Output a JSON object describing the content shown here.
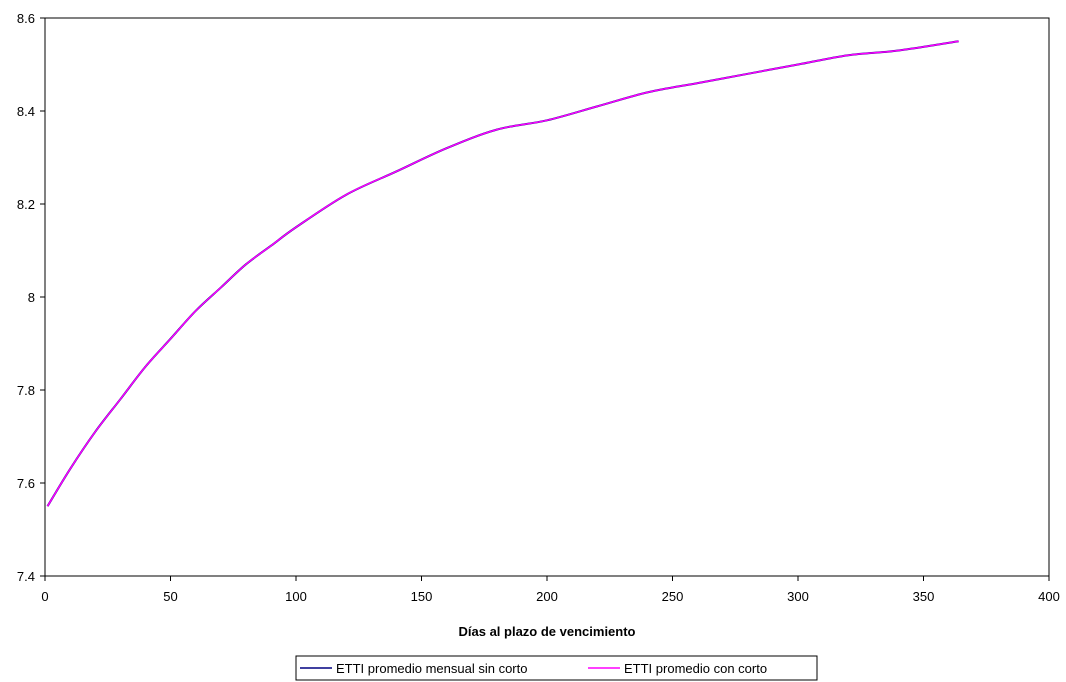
{
  "chart_data": {
    "type": "line",
    "title": "",
    "xlabel": "Días al plazo de vencimiento",
    "ylabel": "",
    "xlim": [
      0,
      400
    ],
    "ylim": [
      7.4,
      8.6
    ],
    "xticks": [
      "0",
      "50",
      "100",
      "150",
      "200",
      "250",
      "300",
      "350",
      "400"
    ],
    "yticks": [
      "7.4",
      "7.6",
      "7.8",
      "8",
      "8.2",
      "8.4",
      "8.6"
    ],
    "grid": false,
    "legend_position": "bottom-center",
    "x": [
      1,
      10,
      20,
      30,
      40,
      50,
      60,
      70,
      80,
      90,
      100,
      120,
      140,
      160,
      180,
      200,
      220,
      240,
      260,
      280,
      300,
      320,
      340,
      364
    ],
    "series": [
      {
        "name": "ETTI promedio mensual sin corto",
        "color": "#000080",
        "values": [
          7.55,
          7.63,
          7.71,
          7.78,
          7.85,
          7.91,
          7.97,
          8.02,
          8.07,
          8.11,
          8.15,
          8.22,
          8.27,
          8.32,
          8.36,
          8.38,
          8.41,
          8.44,
          8.46,
          8.48,
          8.5,
          8.52,
          8.53,
          8.55
        ]
      },
      {
        "name": "ETTI promedio con corto",
        "color": "#ff00ff",
        "values": [
          7.55,
          7.63,
          7.71,
          7.78,
          7.85,
          7.91,
          7.97,
          8.02,
          8.07,
          8.11,
          8.15,
          8.22,
          8.27,
          8.32,
          8.36,
          8.38,
          8.41,
          8.44,
          8.46,
          8.48,
          8.5,
          8.52,
          8.53,
          8.55
        ]
      }
    ]
  }
}
